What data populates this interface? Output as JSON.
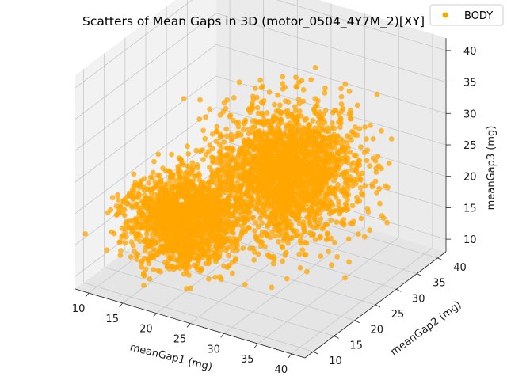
{
  "chart_data": {
    "type": "scatter3d",
    "title": "Scatters of Mean Gaps in 3D (motor_0504_4Y7M_2)[XY]",
    "xlabel": "meanGap1 (mg)",
    "ylabel": "meanGap2 (mg)",
    "zlabel": "meanGap3 (mg)",
    "xlim": [
      8,
      42
    ],
    "ylim": [
      8,
      42
    ],
    "zlim": [
      8,
      42
    ],
    "xticks": [
      10,
      15,
      20,
      25,
      30,
      35,
      40
    ],
    "yticks": [
      10,
      15,
      20,
      25,
      30,
      35,
      40
    ],
    "zticks": [
      10,
      15,
      20,
      25,
      30,
      35,
      40
    ],
    "grid": true,
    "legend_position": "top-right",
    "series": [
      {
        "name": "BODY",
        "color": "#FFA500",
        "clusters": [
          {
            "center": [
              17,
              20,
              16
            ],
            "spread": [
              3.5,
              3.5,
              3
            ],
            "count": "dense"
          },
          {
            "center": [
              27,
              28,
              23
            ],
            "spread": [
              4.5,
              4.5,
              4.5
            ],
            "count": "dense"
          }
        ]
      }
    ]
  }
}
